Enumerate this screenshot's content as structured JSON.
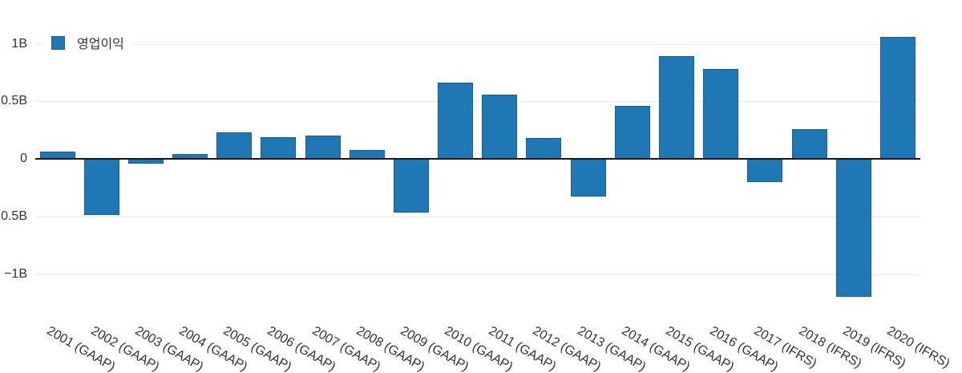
{
  "legend": {
    "label": "영업이익"
  },
  "colors": {
    "bar_fill": "#1f77b4",
    "bar_border": "#14608f",
    "grid": "#e9e9e9",
    "zero_line": "#161616",
    "text": "#333333"
  },
  "y_axis": {
    "tick_labels": [
      "1B",
      "0.5B",
      "0",
      "0.5B",
      "−1B"
    ],
    "tick_values": [
      1,
      0.5,
      0,
      -0.5,
      -1
    ]
  },
  "chart_data": {
    "type": "bar",
    "categories": [
      "2001 (GAAP)",
      "2002 (GAAP)",
      "2003 (GAAP)",
      "2004 (GAAP)",
      "2005 (GAAP)",
      "2006 (GAAP)",
      "2007 (GAAP)",
      "2008 (GAAP)",
      "2009 (GAAP)",
      "2010 (GAAP)",
      "2011 (GAAP)",
      "2012 (GAAP)",
      "2013 (GAAP)",
      "2014 (GAAP)",
      "2015 (GAAP)",
      "2016 (GAAP)",
      "2017 (IFRS)",
      "2018 (IFRS)",
      "2019 (IFRS)",
      "2020 (IFRS)"
    ],
    "series": [
      {
        "name": "영업이익",
        "values": [
          0.06,
          -0.49,
          -0.04,
          0.04,
          0.23,
          0.19,
          0.2,
          0.08,
          -0.47,
          0.66,
          0.56,
          0.18,
          -0.33,
          0.46,
          0.89,
          0.78,
          -0.2,
          0.26,
          -1.2,
          1.06
        ]
      }
    ],
    "unit": "B",
    "ylim": [
      -1.35,
      1.4
    ],
    "grid": true,
    "legend_position": "top-left"
  }
}
